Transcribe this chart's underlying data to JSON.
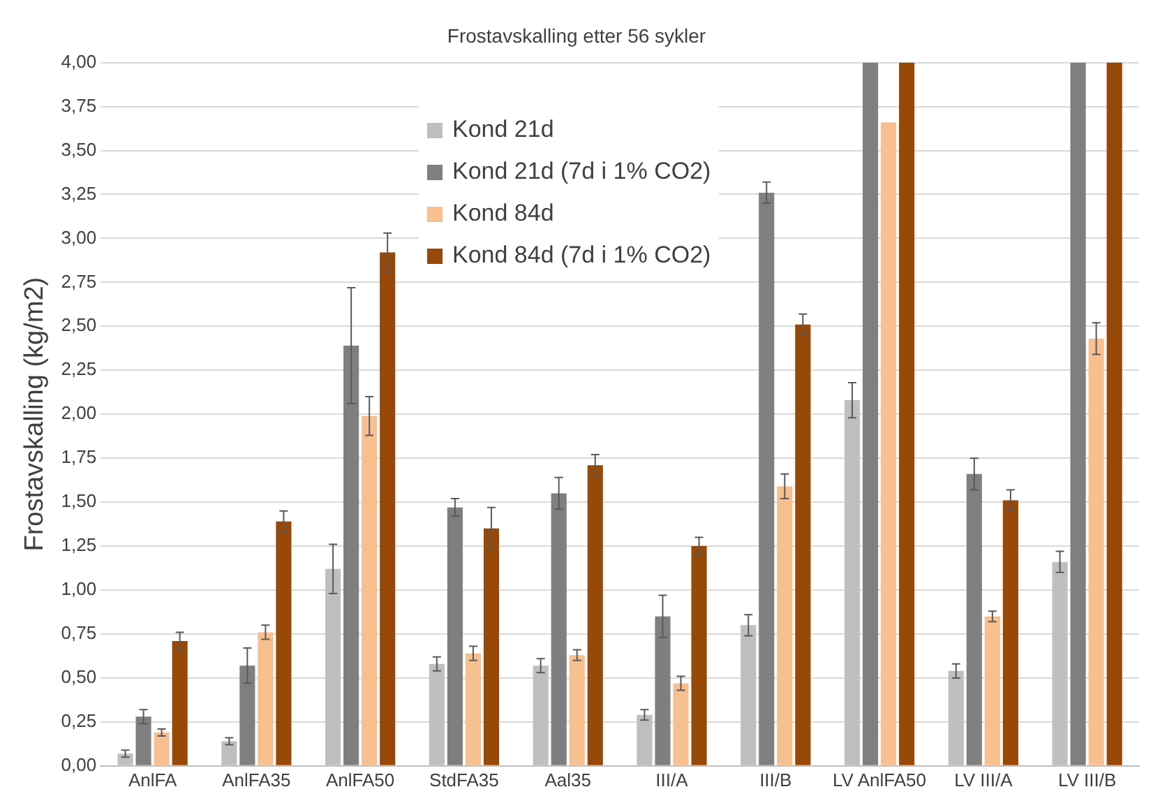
{
  "chart_data": {
    "type": "bar",
    "title": "Frostavskalling etter 56 sykler",
    "ylabel": "Frostavskalling (kg/m2)",
    "categories": [
      "AnlFA",
      "AnlFA35",
      "AnlFA50",
      "StdFA35",
      "Aal35",
      "III/A",
      "III/B",
      "LV AnlFA50",
      "LV III/A",
      "LV III/B"
    ],
    "series": [
      {
        "name": "Kond 21d",
        "color": "#bfbfbf",
        "values": [
          0.07,
          0.14,
          1.12,
          0.58,
          0.57,
          0.29,
          0.8,
          2.08,
          0.54,
          1.16
        ],
        "errors": [
          0.02,
          0.02,
          0.14,
          0.04,
          0.04,
          0.03,
          0.06,
          0.1,
          0.04,
          0.06
        ]
      },
      {
        "name": "Kond 21d (7d i 1% CO2)",
        "color": "#7f7f7f",
        "values": [
          0.28,
          0.57,
          2.39,
          1.47,
          1.55,
          0.85,
          3.26,
          4,
          1.66,
          4
        ],
        "errors": [
          0.04,
          0.1,
          0.33,
          0.05,
          0.09,
          0.12,
          0.06,
          null,
          0.09,
          null
        ]
      },
      {
        "name": "Kond 84d",
        "color": "#f8bf8f",
        "values": [
          0.19,
          0.76,
          1.99,
          0.64,
          0.63,
          0.47,
          1.59,
          3.66,
          0.85,
          2.43
        ],
        "errors": [
          0.02,
          0.04,
          0.11,
          0.04,
          0.03,
          0.04,
          0.07,
          null,
          0.03,
          0.09
        ]
      },
      {
        "name": "Kond 84d (7d i 1% CO2)",
        "color": "#984807",
        "values": [
          0.71,
          1.39,
          2.92,
          1.35,
          1.71,
          1.25,
          2.51,
          4,
          1.51,
          4
        ],
        "errors": [
          0.05,
          0.06,
          0.11,
          0.12,
          0.06,
          0.05,
          0.06,
          null,
          0.06,
          null
        ]
      }
    ],
    "ylim": [
      0,
      4
    ],
    "yticks": [
      {
        "value": 0,
        "label": "0,00"
      },
      {
        "value": 0.25,
        "label": "0,25"
      },
      {
        "value": 0.5,
        "label": "0,50"
      },
      {
        "value": 0.75,
        "label": "0,75"
      },
      {
        "value": 1,
        "label": "1,00"
      },
      {
        "value": 1.25,
        "label": "1,25"
      },
      {
        "value": 1.5,
        "label": "1,50"
      },
      {
        "value": 1.75,
        "label": "1,75"
      },
      {
        "value": 2,
        "label": "2,00"
      },
      {
        "value": 2.25,
        "label": "2,25"
      },
      {
        "value": 2.5,
        "label": "2,50"
      },
      {
        "value": 2.75,
        "label": "2,75"
      },
      {
        "value": 3,
        "label": "3,00"
      },
      {
        "value": 3.25,
        "label": "3,25"
      },
      {
        "value": 3.5,
        "label": "3,50"
      },
      {
        "value": 3.75,
        "label": "3,75"
      },
      {
        "value": 4,
        "label": "4,00"
      }
    ],
    "grid": "y",
    "legend": "top"
  }
}
